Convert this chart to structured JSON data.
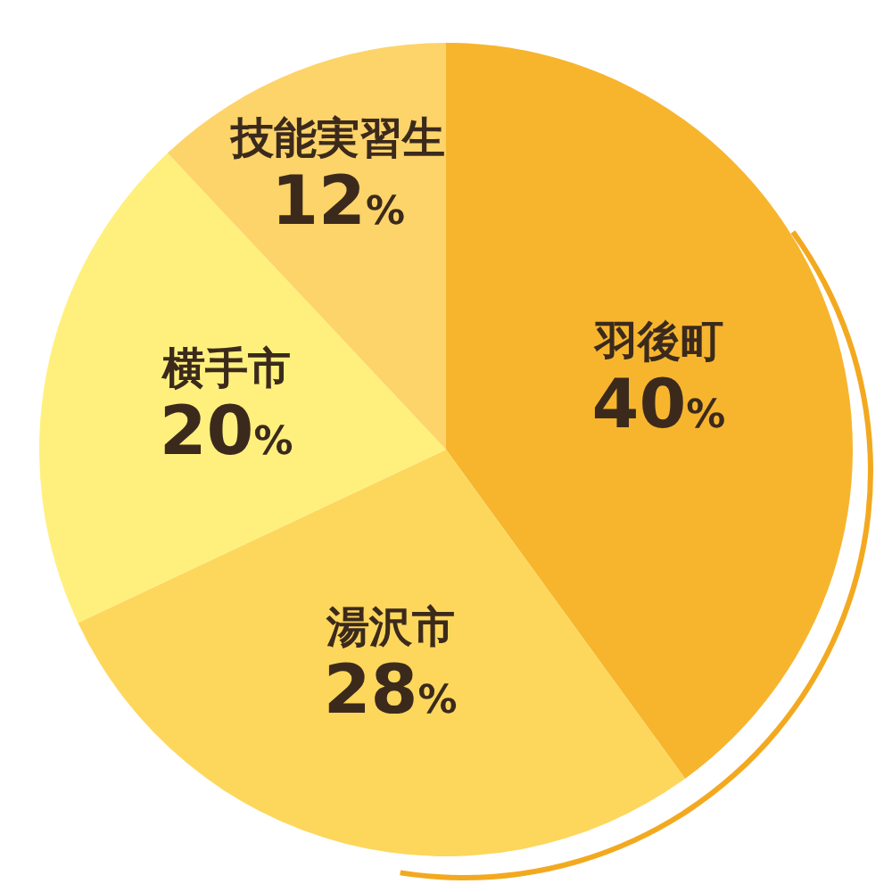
{
  "chart_data": {
    "type": "pie",
    "categories": [
      "羽後町",
      "湯沢市",
      "横手市",
      "技能実習生"
    ],
    "values": [
      40,
      28,
      20,
      12
    ],
    "value_labels": [
      "40%",
      "28%",
      "20%",
      "12%"
    ],
    "colors": [
      "#f7b52e",
      "#fdd75c",
      "#fff07e",
      "#fdd46a"
    ]
  }
}
